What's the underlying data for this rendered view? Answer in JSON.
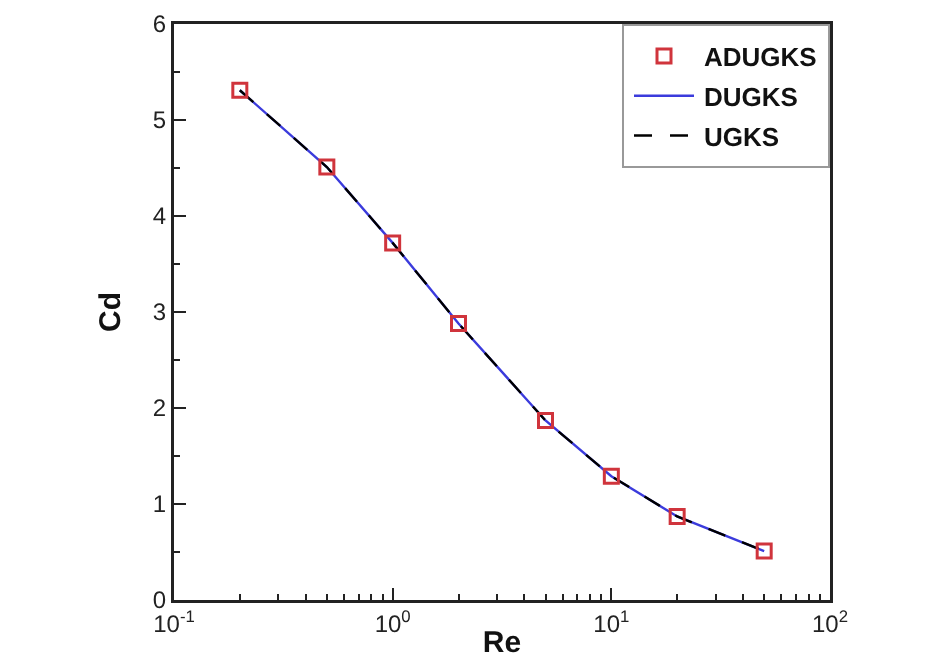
{
  "chart_data": {
    "type": "line",
    "xlabel": "Re",
    "ylabel": "Cd",
    "x": [
      0.2,
      0.5,
      1,
      2,
      5,
      10,
      20,
      50
    ],
    "series": [
      {
        "name": "ADUGKS",
        "type": "scatter",
        "color": "#d0343c",
        "marker": "square",
        "values": [
          5.31,
          4.51,
          3.72,
          2.88,
          1.87,
          1.29,
          0.87,
          0.51
        ]
      },
      {
        "name": "DUGKS",
        "color": "#3b3bdc",
        "line_style": "solid",
        "marker": "none",
        "values": [
          5.31,
          4.51,
          3.72,
          2.88,
          1.87,
          1.29,
          0.87,
          0.51
        ]
      },
      {
        "name": "UGKS",
        "color": "#000000",
        "line_style": "dashed",
        "marker": "none",
        "values": [
          5.31,
          4.51,
          3.72,
          2.88,
          1.87,
          1.29,
          0.87,
          0.51
        ]
      }
    ],
    "log": "x",
    "xlim": [
      0.1,
      100
    ],
    "xticks": [
      {
        "value": 0.1,
        "label": "10$^{-1}$"
      },
      {
        "value": 1,
        "label": "10$^{0}$"
      },
      {
        "value": 10,
        "label": "10$^{1}$"
      },
      {
        "value": 100,
        "label": "10$^{2}$"
      }
    ],
    "ylim": [
      0,
      6
    ],
    "yticks": [
      0,
      1,
      2,
      3,
      4,
      5,
      6
    ],
    "grid": false,
    "legend": "top right"
  }
}
